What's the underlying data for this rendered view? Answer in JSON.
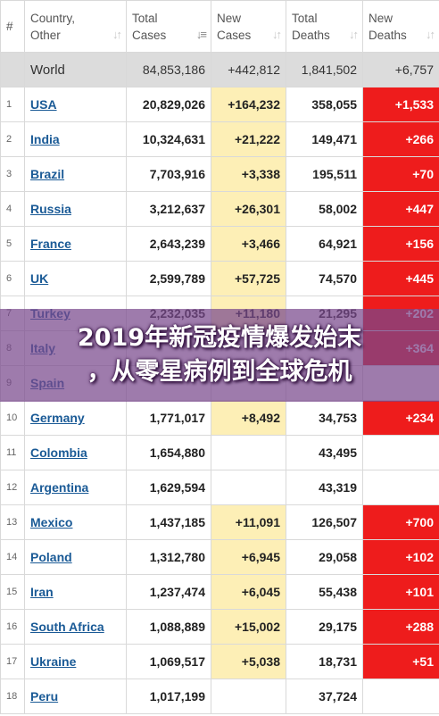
{
  "table": {
    "headers": {
      "rank": "#",
      "country": [
        "Country,",
        "Other"
      ],
      "total_cases": [
        "Total",
        "Cases"
      ],
      "new_cases": [
        "New",
        "Cases"
      ],
      "total_deaths": [
        "Total",
        "Deaths"
      ],
      "new_deaths": [
        "New",
        "Deaths"
      ]
    },
    "world": {
      "country": "World",
      "total_cases": "84,853,186",
      "new_cases": "+442,812",
      "total_deaths": "1,841,502",
      "new_deaths": "+6,757"
    },
    "rows": [
      {
        "rank": "1",
        "country": "USA",
        "total_cases": "20,829,026",
        "new_cases": "+164,232",
        "total_deaths": "358,055",
        "new_deaths": "+1,533"
      },
      {
        "rank": "2",
        "country": "India",
        "total_cases": "10,324,631",
        "new_cases": "+21,222",
        "total_deaths": "149,471",
        "new_deaths": "+266"
      },
      {
        "rank": "3",
        "country": "Brazil",
        "total_cases": "7,703,916",
        "new_cases": "+3,338",
        "total_deaths": "195,511",
        "new_deaths": "+70"
      },
      {
        "rank": "4",
        "country": "Russia",
        "total_cases": "3,212,637",
        "new_cases": "+26,301",
        "total_deaths": "58,002",
        "new_deaths": "+447"
      },
      {
        "rank": "5",
        "country": "France",
        "total_cases": "2,643,239",
        "new_cases": "+3,466",
        "total_deaths": "64,921",
        "new_deaths": "+156"
      },
      {
        "rank": "6",
        "country": "UK",
        "total_cases": "2,599,789",
        "new_cases": "+57,725",
        "total_deaths": "74,570",
        "new_deaths": "+445"
      },
      {
        "rank": "7",
        "country": "Turkey",
        "total_cases": "2,232,035",
        "new_cases": "+11,180",
        "total_deaths": "21,295",
        "new_deaths": "+202"
      },
      {
        "rank": "8",
        "country": "Italy",
        "total_cases": "",
        "new_cases": "",
        "total_deaths": "",
        "new_deaths": "+364"
      },
      {
        "rank": "9",
        "country": "Spain",
        "total_cases": "",
        "new_cases": "",
        "total_deaths": "",
        "new_deaths": ""
      },
      {
        "rank": "10",
        "country": "Germany",
        "total_cases": "1,771,017",
        "new_cases": "+8,492",
        "total_deaths": "34,753",
        "new_deaths": "+234"
      },
      {
        "rank": "11",
        "country": "Colombia",
        "total_cases": "1,654,880",
        "new_cases": "",
        "total_deaths": "43,495",
        "new_deaths": ""
      },
      {
        "rank": "12",
        "country": "Argentina",
        "total_cases": "1,629,594",
        "new_cases": "",
        "total_deaths": "43,319",
        "new_deaths": ""
      },
      {
        "rank": "13",
        "country": "Mexico",
        "total_cases": "1,437,185",
        "new_cases": "+11,091",
        "total_deaths": "126,507",
        "new_deaths": "+700"
      },
      {
        "rank": "14",
        "country": "Poland",
        "total_cases": "1,312,780",
        "new_cases": "+6,945",
        "total_deaths": "29,058",
        "new_deaths": "+102"
      },
      {
        "rank": "15",
        "country": "Iran",
        "total_cases": "1,237,474",
        "new_cases": "+6,045",
        "total_deaths": "55,438",
        "new_deaths": "+101"
      },
      {
        "rank": "16",
        "country": "South Africa",
        "total_cases": "1,088,889",
        "new_cases": "+15,002",
        "total_deaths": "29,175",
        "new_deaths": "+288"
      },
      {
        "rank": "17",
        "country": "Ukraine",
        "total_cases": "1,069,517",
        "new_cases": "+5,038",
        "total_deaths": "18,731",
        "new_deaths": "+51"
      },
      {
        "rank": "18",
        "country": "Peru",
        "total_cases": "1,017,199",
        "new_cases": "",
        "total_deaths": "37,724",
        "new_deaths": ""
      }
    ],
    "colors": {
      "new_cases_bg": "#fdefb6",
      "new_deaths_bg": "#ee1c1c",
      "world_row_bg": "#dcdcdc",
      "link": "#1a5a96"
    },
    "sort_icons": [
      "sort-arrows-icon",
      "sort-desc-icon"
    ]
  },
  "overlay": {
    "line1": "2019年新冠疫情爆发始末",
    "line2": "，从零星病例到全球危机",
    "bg_color": "#78488c"
  }
}
